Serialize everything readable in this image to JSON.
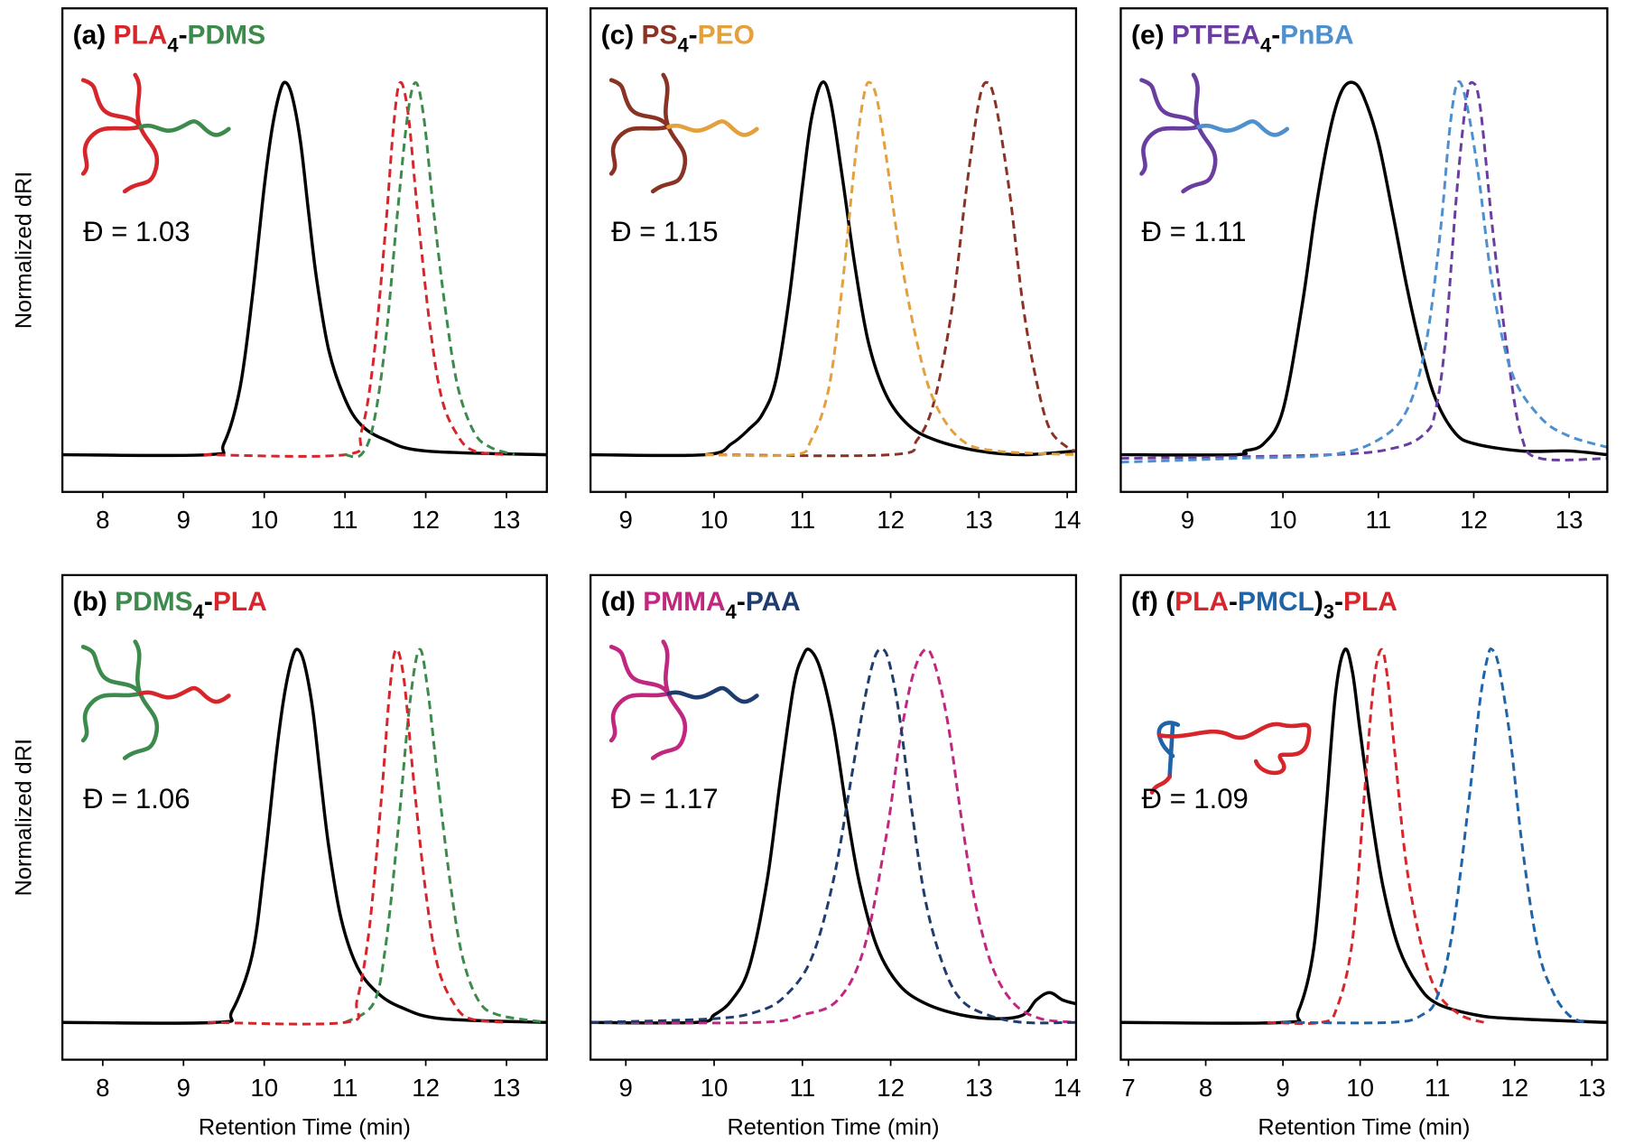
{
  "chart_data": [
    {
      "type": "line",
      "title": [
        {
          "text": "(a) ",
          "color": "#000000"
        },
        {
          "text": "PLA",
          "color": "#d7262b"
        },
        {
          "text": "4",
          "color": "#000000",
          "sub": true
        },
        {
          "text": "-",
          "color": "#000000"
        },
        {
          "text": "PDMS",
          "color": "#3c8a4c"
        }
      ],
      "annotation": "Đ = 1.03",
      "ylabel": "Normalized dRI",
      "xlim": [
        7.5,
        13.5
      ],
      "xticks": [
        8,
        9,
        10,
        11,
        12,
        13
      ],
      "ylim": [
        -0.1,
        1.2
      ],
      "series": [
        {
          "color": "#000000",
          "dash": false,
          "x": [
            7.5,
            9.3,
            9.5,
            9.7,
            9.85,
            10.0,
            10.1,
            10.2,
            10.27,
            10.35,
            10.45,
            10.55,
            10.65,
            10.8,
            11.0,
            11.2,
            11.5,
            12.0,
            13.5
          ],
          "values": [
            0,
            0,
            0.03,
            0.18,
            0.42,
            0.72,
            0.88,
            0.98,
            1.0,
            0.96,
            0.84,
            0.65,
            0.47,
            0.28,
            0.15,
            0.08,
            0.04,
            0.01,
            0
          ]
        },
        {
          "color": "#d7262b",
          "dash": true,
          "x": [
            9.25,
            11.0,
            11.2,
            11.35,
            11.5,
            11.6,
            11.68,
            11.78,
            11.9,
            12.05,
            12.2,
            12.4,
            12.6,
            13.0
          ],
          "values": [
            0,
            0,
            0.06,
            0.25,
            0.6,
            0.88,
            1.0,
            0.92,
            0.65,
            0.35,
            0.15,
            0.05,
            0.01,
            0
          ]
        },
        {
          "color": "#3c8a4c",
          "dash": true,
          "x": [
            11.0,
            11.2,
            11.35,
            11.5,
            11.65,
            11.78,
            11.88,
            11.98,
            12.1,
            12.25,
            12.4,
            12.6,
            12.8,
            13.1
          ],
          "values": [
            0,
            0,
            0.08,
            0.3,
            0.65,
            0.92,
            1.0,
            0.9,
            0.65,
            0.38,
            0.18,
            0.06,
            0.02,
            0
          ]
        }
      ]
    },
    {
      "type": "line",
      "title": [
        {
          "text": "(b) ",
          "color": "#000000"
        },
        {
          "text": "PDMS",
          "color": "#3c8a4c"
        },
        {
          "text": "4",
          "color": "#000000",
          "sub": true
        },
        {
          "text": "-",
          "color": "#000000"
        },
        {
          "text": "PLA",
          "color": "#d7262b"
        }
      ],
      "annotation": "Đ = 1.06",
      "ylabel": "Normalized dRI",
      "xlabel": "Retention Time (min)",
      "xlim": [
        7.5,
        13.5
      ],
      "xticks": [
        8,
        9,
        10,
        11,
        12,
        13
      ],
      "ylim": [
        -0.1,
        1.2
      ],
      "series": [
        {
          "color": "#000000",
          "dash": false,
          "x": [
            7.5,
            9.4,
            9.6,
            9.85,
            10.0,
            10.15,
            10.25,
            10.35,
            10.42,
            10.5,
            10.6,
            10.7,
            10.8,
            10.95,
            11.15,
            11.4,
            11.7,
            12.2,
            13.5
          ],
          "values": [
            0,
            0,
            0.03,
            0.18,
            0.42,
            0.72,
            0.88,
            0.98,
            1.0,
            0.96,
            0.84,
            0.65,
            0.47,
            0.28,
            0.15,
            0.08,
            0.04,
            0.01,
            0
          ]
        },
        {
          "color": "#3c8a4c",
          "dash": true,
          "x": [
            11.0,
            11.35,
            11.5,
            11.65,
            11.8,
            11.92,
            12.02,
            12.15,
            12.3,
            12.45,
            12.65,
            12.9,
            13.5
          ],
          "values": [
            0,
            0.05,
            0.2,
            0.5,
            0.85,
            1.0,
            0.9,
            0.65,
            0.38,
            0.18,
            0.06,
            0.02,
            0
          ]
        },
        {
          "color": "#d7262b",
          "dash": true,
          "x": [
            9.3,
            11.0,
            11.15,
            11.3,
            11.45,
            11.55,
            11.63,
            11.73,
            11.85,
            12.0,
            12.15,
            12.35,
            12.55,
            13.0
          ],
          "values": [
            0,
            0,
            0.06,
            0.25,
            0.6,
            0.88,
            1.0,
            0.92,
            0.65,
            0.35,
            0.15,
            0.05,
            0.01,
            0
          ]
        }
      ]
    },
    {
      "type": "line",
      "title": [
        {
          "text": "(c) ",
          "color": "#000000"
        },
        {
          "text": "PS",
          "color": "#8a3324"
        },
        {
          "text": "4",
          "color": "#000000",
          "sub": true
        },
        {
          "text": "-",
          "color": "#000000"
        },
        {
          "text": "PEO",
          "color": "#e3a03c"
        }
      ],
      "annotation": "Đ = 1.15",
      "xlim": [
        8.6,
        14.1
      ],
      "xticks": [
        9,
        10,
        11,
        12,
        13,
        14
      ],
      "ylim": [
        -0.1,
        1.2
      ],
      "series": [
        {
          "color": "#000000",
          "dash": false,
          "x": [
            8.6,
            9.9,
            10.2,
            10.4,
            10.55,
            10.7,
            10.85,
            11.0,
            11.1,
            11.22,
            11.32,
            11.45,
            11.6,
            11.75,
            11.95,
            12.2,
            12.5,
            13.0,
            13.5,
            14.1
          ],
          "values": [
            0,
            0,
            0.03,
            0.07,
            0.11,
            0.2,
            0.42,
            0.72,
            0.9,
            1.0,
            0.95,
            0.75,
            0.5,
            0.3,
            0.16,
            0.08,
            0.04,
            0.01,
            0,
            0.01
          ]
        },
        {
          "color": "#8a3324",
          "dash": true,
          "x": [
            9.9,
            12.0,
            12.3,
            12.5,
            12.7,
            12.85,
            13.0,
            13.1,
            13.2,
            13.35,
            13.5,
            13.65,
            13.8,
            14.0,
            14.1
          ],
          "values": [
            0,
            0,
            0.04,
            0.15,
            0.4,
            0.7,
            0.95,
            1.0,
            0.93,
            0.7,
            0.4,
            0.2,
            0.07,
            0.02,
            0.01
          ]
        },
        {
          "color": "#e3a03c",
          "dash": true,
          "x": [
            9.9,
            10.9,
            11.1,
            11.3,
            11.45,
            11.6,
            11.7,
            11.77,
            11.85,
            11.95,
            12.1,
            12.3,
            12.5,
            12.8,
            13.2,
            14.1
          ],
          "values": [
            0,
            0,
            0.04,
            0.18,
            0.45,
            0.8,
            0.97,
            1.0,
            0.95,
            0.8,
            0.55,
            0.3,
            0.14,
            0.04,
            0.01,
            0
          ]
        }
      ]
    },
    {
      "type": "line",
      "title": [
        {
          "text": "(d) ",
          "color": "#000000"
        },
        {
          "text": "PMMA",
          "color": "#c1277f"
        },
        {
          "text": "4",
          "color": "#000000",
          "sub": true
        },
        {
          "text": "-",
          "color": "#000000"
        },
        {
          "text": "PAA",
          "color": "#1e3c6e"
        }
      ],
      "annotation": "Đ = 1.17",
      "xlabel": "Retention Time (min)",
      "xlim": [
        8.6,
        14.1
      ],
      "xticks": [
        9,
        10,
        11,
        12,
        13,
        14
      ],
      "ylim": [
        -0.1,
        1.2
      ],
      "series": [
        {
          "color": "#000000",
          "dash": false,
          "x": [
            8.6,
            9.8,
            10.0,
            10.2,
            10.4,
            10.6,
            10.75,
            10.9,
            11.0,
            11.08,
            11.2,
            11.35,
            11.5,
            11.65,
            11.85,
            12.1,
            12.4,
            12.8,
            13.2,
            13.5,
            13.65,
            13.8,
            13.95,
            14.1
          ],
          "values": [
            0,
            0,
            0.02,
            0.06,
            0.15,
            0.38,
            0.65,
            0.9,
            0.98,
            1.0,
            0.95,
            0.8,
            0.57,
            0.37,
            0.2,
            0.1,
            0.05,
            0.02,
            0.01,
            0.02,
            0.06,
            0.08,
            0.06,
            0.05
          ]
        },
        {
          "color": "#c1277f",
          "dash": true,
          "x": [
            8.6,
            10.5,
            11.0,
            11.4,
            11.7,
            11.95,
            12.1,
            12.25,
            12.39,
            12.5,
            12.65,
            12.8,
            12.95,
            13.15,
            13.4,
            13.7,
            14.1
          ],
          "values": [
            0,
            0,
            0.02,
            0.06,
            0.2,
            0.5,
            0.75,
            0.93,
            1.0,
            0.96,
            0.8,
            0.55,
            0.33,
            0.15,
            0.05,
            0.01,
            0
          ]
        },
        {
          "color": "#1e3c6e",
          "dash": true,
          "x": [
            8.6,
            10.0,
            10.5,
            10.8,
            11.1,
            11.35,
            11.55,
            11.7,
            11.82,
            11.92,
            12.0,
            12.1,
            12.25,
            12.4,
            12.6,
            12.8,
            13.1,
            13.5,
            14.1
          ],
          "values": [
            0,
            0.01,
            0.03,
            0.07,
            0.17,
            0.38,
            0.65,
            0.86,
            0.98,
            1.0,
            0.95,
            0.82,
            0.55,
            0.32,
            0.15,
            0.06,
            0.02,
            0,
            0
          ]
        }
      ]
    },
    {
      "type": "line",
      "title": [
        {
          "text": "(e) ",
          "color": "#000000"
        },
        {
          "text": "PTFEA",
          "color": "#6a3da0"
        },
        {
          "text": "4",
          "color": "#000000",
          "sub": true
        },
        {
          "text": "-",
          "color": "#000000"
        },
        {
          "text": "PnBA",
          "color": "#4d90cd"
        }
      ],
      "annotation": "Đ = 1.11",
      "xlim": [
        8.3,
        13.4
      ],
      "xticks": [
        9,
        10,
        11,
        12,
        13
      ],
      "ylim": [
        -0.1,
        1.2
      ],
      "series": [
        {
          "color": "#000000",
          "dash": false,
          "x": [
            8.3,
            9.5,
            9.6,
            9.8,
            10.0,
            10.2,
            10.35,
            10.5,
            10.62,
            10.74,
            10.85,
            11.0,
            11.15,
            11.3,
            11.45,
            11.6,
            11.8,
            12.0,
            12.5,
            13.0,
            13.4
          ],
          "values": [
            0,
            0,
            0.01,
            0.03,
            0.12,
            0.4,
            0.67,
            0.88,
            0.98,
            1.0,
            0.96,
            0.84,
            0.65,
            0.45,
            0.28,
            0.15,
            0.06,
            0.03,
            0.01,
            0.01,
            0
          ]
        },
        {
          "color": "#6a3da0",
          "dash": true,
          "x": [
            8.3,
            10.5,
            11.2,
            11.5,
            11.6,
            11.7,
            11.82,
            11.92,
            11.99,
            12.07,
            12.2,
            12.35,
            12.5,
            12.7,
            13.4
          ],
          "values": [
            -0.01,
            0,
            0.02,
            0.06,
            0.12,
            0.3,
            0.7,
            0.95,
            1.0,
            0.93,
            0.6,
            0.28,
            0.05,
            -0.01,
            -0.01
          ]
        },
        {
          "color": "#4d90cd",
          "dash": true,
          "x": [
            8.3,
            9.5,
            10.5,
            11.0,
            11.3,
            11.5,
            11.65,
            11.75,
            11.83,
            11.92,
            12.05,
            12.2,
            12.4,
            12.7,
            13.0,
            13.4
          ],
          "values": [
            -0.02,
            -0.01,
            0,
            0.04,
            0.12,
            0.3,
            0.6,
            0.88,
            1.0,
            0.95,
            0.75,
            0.45,
            0.22,
            0.1,
            0.05,
            0.02
          ]
        }
      ]
    },
    {
      "type": "line",
      "title": [
        {
          "text": "(f) (",
          "color": "#000000"
        },
        {
          "text": "PLA",
          "color": "#d7262b"
        },
        {
          "text": "-",
          "color": "#000000"
        },
        {
          "text": "PMCL",
          "color": "#1f63a8"
        },
        {
          "text": ")",
          "color": "#000000"
        },
        {
          "text": "3",
          "color": "#000000",
          "sub": true
        },
        {
          "text": "-",
          "color": "#000000"
        },
        {
          "text": "PLA",
          "color": "#d7262b"
        }
      ],
      "annotation": "Đ = 1.09",
      "xlabel": "Retention Time (min)",
      "xlim": [
        6.9,
        13.2
      ],
      "xticks": [
        7,
        8,
        9,
        10,
        11,
        12,
        13
      ],
      "ylim": [
        -0.1,
        1.2
      ],
      "series": [
        {
          "color": "#000000",
          "dash": false,
          "x": [
            6.9,
            9.0,
            9.2,
            9.4,
            9.55,
            9.68,
            9.8,
            9.9,
            10.0,
            10.15,
            10.3,
            10.5,
            10.75,
            11.0,
            11.5,
            12.0,
            13.2
          ],
          "values": [
            0,
            0,
            0.03,
            0.2,
            0.55,
            0.88,
            1.0,
            0.94,
            0.78,
            0.55,
            0.36,
            0.2,
            0.1,
            0.05,
            0.02,
            0.01,
            0
          ]
        },
        {
          "color": "#d7262b",
          "dash": true,
          "x": [
            8.8,
            9.5,
            9.7,
            9.9,
            10.05,
            10.17,
            10.27,
            10.35,
            10.45,
            10.6,
            10.8,
            11.0,
            11.3,
            11.6
          ],
          "values": [
            0,
            0,
            0.04,
            0.22,
            0.6,
            0.9,
            1.0,
            0.93,
            0.72,
            0.42,
            0.2,
            0.08,
            0.02,
            0
          ]
        },
        {
          "color": "#1f63a8",
          "dash": true,
          "x": [
            9.0,
            10.4,
            10.8,
            11.0,
            11.2,
            11.4,
            11.55,
            11.65,
            11.71,
            11.8,
            11.95,
            12.1,
            12.3,
            12.5,
            12.7,
            12.9
          ],
          "values": [
            0,
            0,
            0.02,
            0.07,
            0.25,
            0.58,
            0.86,
            0.98,
            1.0,
            0.95,
            0.75,
            0.47,
            0.2,
            0.08,
            0.02,
            0
          ]
        }
      ]
    }
  ]
}
